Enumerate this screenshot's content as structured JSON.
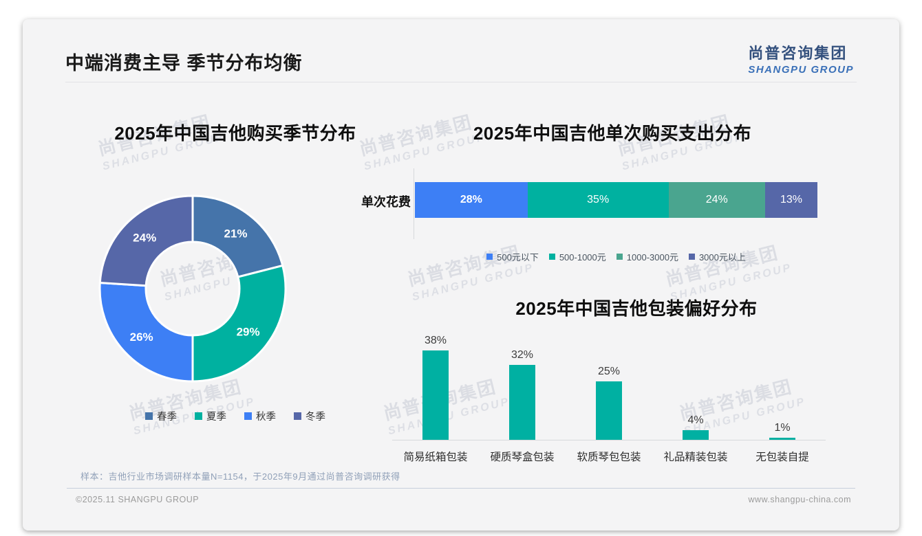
{
  "header": {
    "title": "中端消费主导 季节分布均衡"
  },
  "logo": {
    "cn": "尚普咨询集团",
    "en": "SHANGPU GROUP"
  },
  "watermark": {
    "line1": "尚普咨询集团",
    "line2": "SHANGPU GROUP"
  },
  "footer": {
    "sample_note": "样本：吉他行业市场调研样本量N=1154，于2025年9月通过尚普咨询调研获得",
    "copyright": "©2025.11 SHANGPU GROUP",
    "website": "www.shangpu-china.com"
  },
  "colors": {
    "spring_blue": "#4574AA",
    "summer_teal": "#00B1A0",
    "autumn_blue": "#3D7FF5",
    "winter_slate": "#5667A8",
    "sage_green": "#4AA58F",
    "pack_bar_teal": "#00B0A2",
    "card_background": "#f4f4f5"
  },
  "chart_data": [
    {
      "type": "pie",
      "subtype": "donut",
      "title": "2025年中国吉他购买季节分布",
      "categories": [
        "春季",
        "夏季",
        "秋季",
        "冬季"
      ],
      "values": [
        21,
        29,
        26,
        24
      ],
      "labels": [
        "21%",
        "29%",
        "26%",
        "24%"
      ],
      "colors": [
        "#4574AA",
        "#00B1A0",
        "#3D7FF5",
        "#5667A8"
      ],
      "legend_position": "bottom",
      "start_angle_deg": 0,
      "direction": "clockwise"
    },
    {
      "type": "bar",
      "subtype": "stacked-horizontal",
      "title": "2025年中国吉他单次购买支出分布",
      "row_label": "单次花费",
      "categories": [
        "500元以下",
        "500-1000元",
        "1000-3000元",
        "3000元以上"
      ],
      "values": [
        28,
        35,
        24,
        13
      ],
      "labels": [
        "28%",
        "35%",
        "24%",
        "13%"
      ],
      "colors": [
        "#3D7FF5",
        "#00B1A0",
        "#4AA58F",
        "#5667A8"
      ],
      "legend_position": "bottom",
      "xlim": [
        0,
        100
      ]
    },
    {
      "type": "bar",
      "subtype": "vertical",
      "title": "2025年中国吉他包装偏好分布",
      "categories": [
        "简易纸箱包装",
        "硬质琴盒包装",
        "软质琴包包装",
        "礼品精装包装",
        "无包装自提"
      ],
      "values": [
        38,
        32,
        25,
        4,
        1
      ],
      "labels": [
        "38%",
        "32%",
        "25%",
        "4%",
        "1%"
      ],
      "bar_color": "#00B0A2",
      "ylim": [
        0,
        42
      ],
      "grid": false
    }
  ]
}
